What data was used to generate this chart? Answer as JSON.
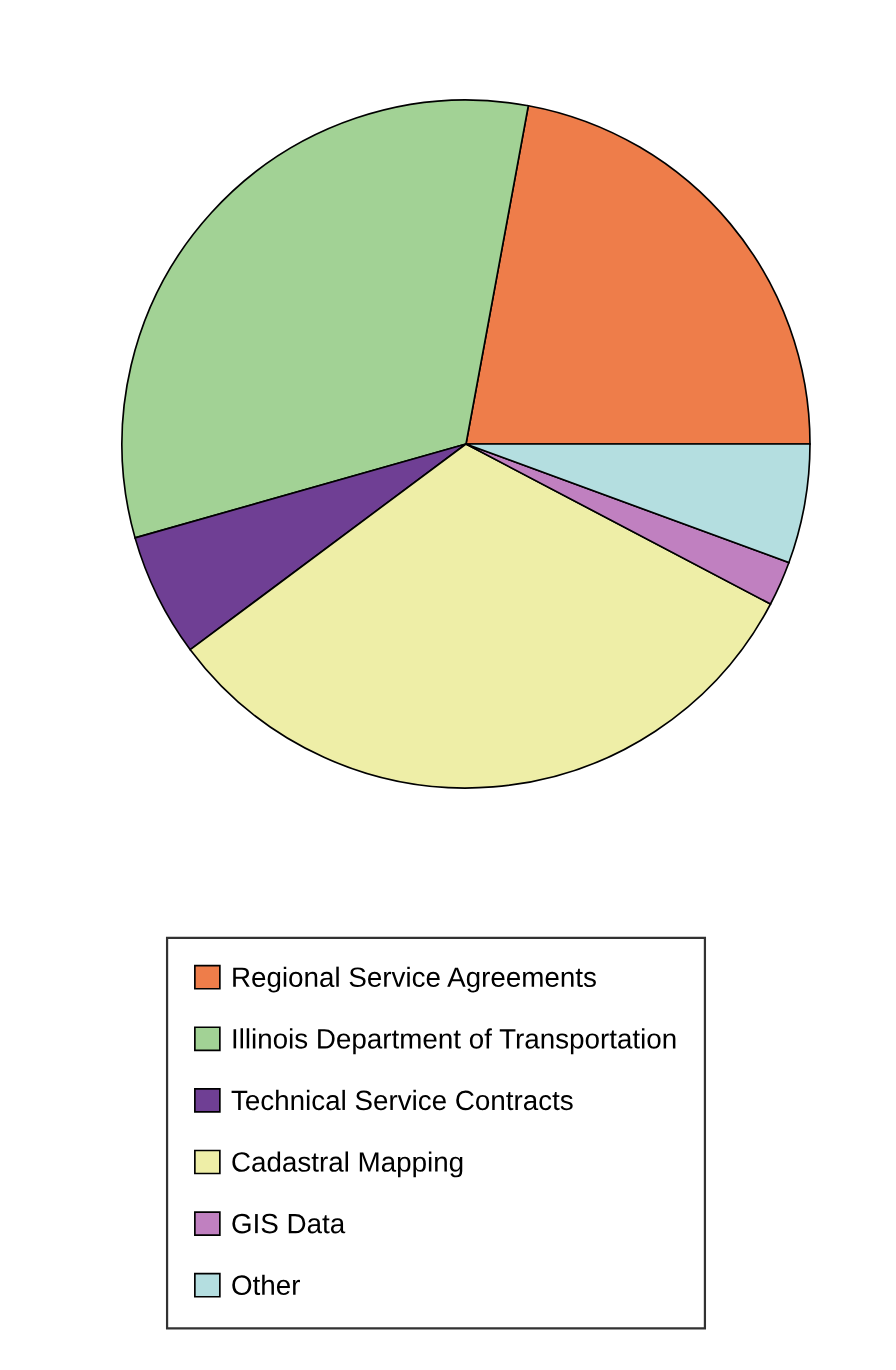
{
  "chart_data": {
    "type": "pie",
    "categories": [
      "Regional Service Agreements",
      "Illinois Department of Transportation",
      "Technical Service Contracts",
      "Cadastral Mapping",
      "GIS Data",
      "Other"
    ],
    "values": [
      22.1,
      32.3,
      5.8,
      32.1,
      2.1,
      5.6
    ],
    "colors": [
      "#ee7d4a",
      "#a2d295",
      "#6f3f94",
      "#eeeea7",
      "#c080c0",
      "#b4dee0"
    ],
    "legend": "bottom"
  }
}
